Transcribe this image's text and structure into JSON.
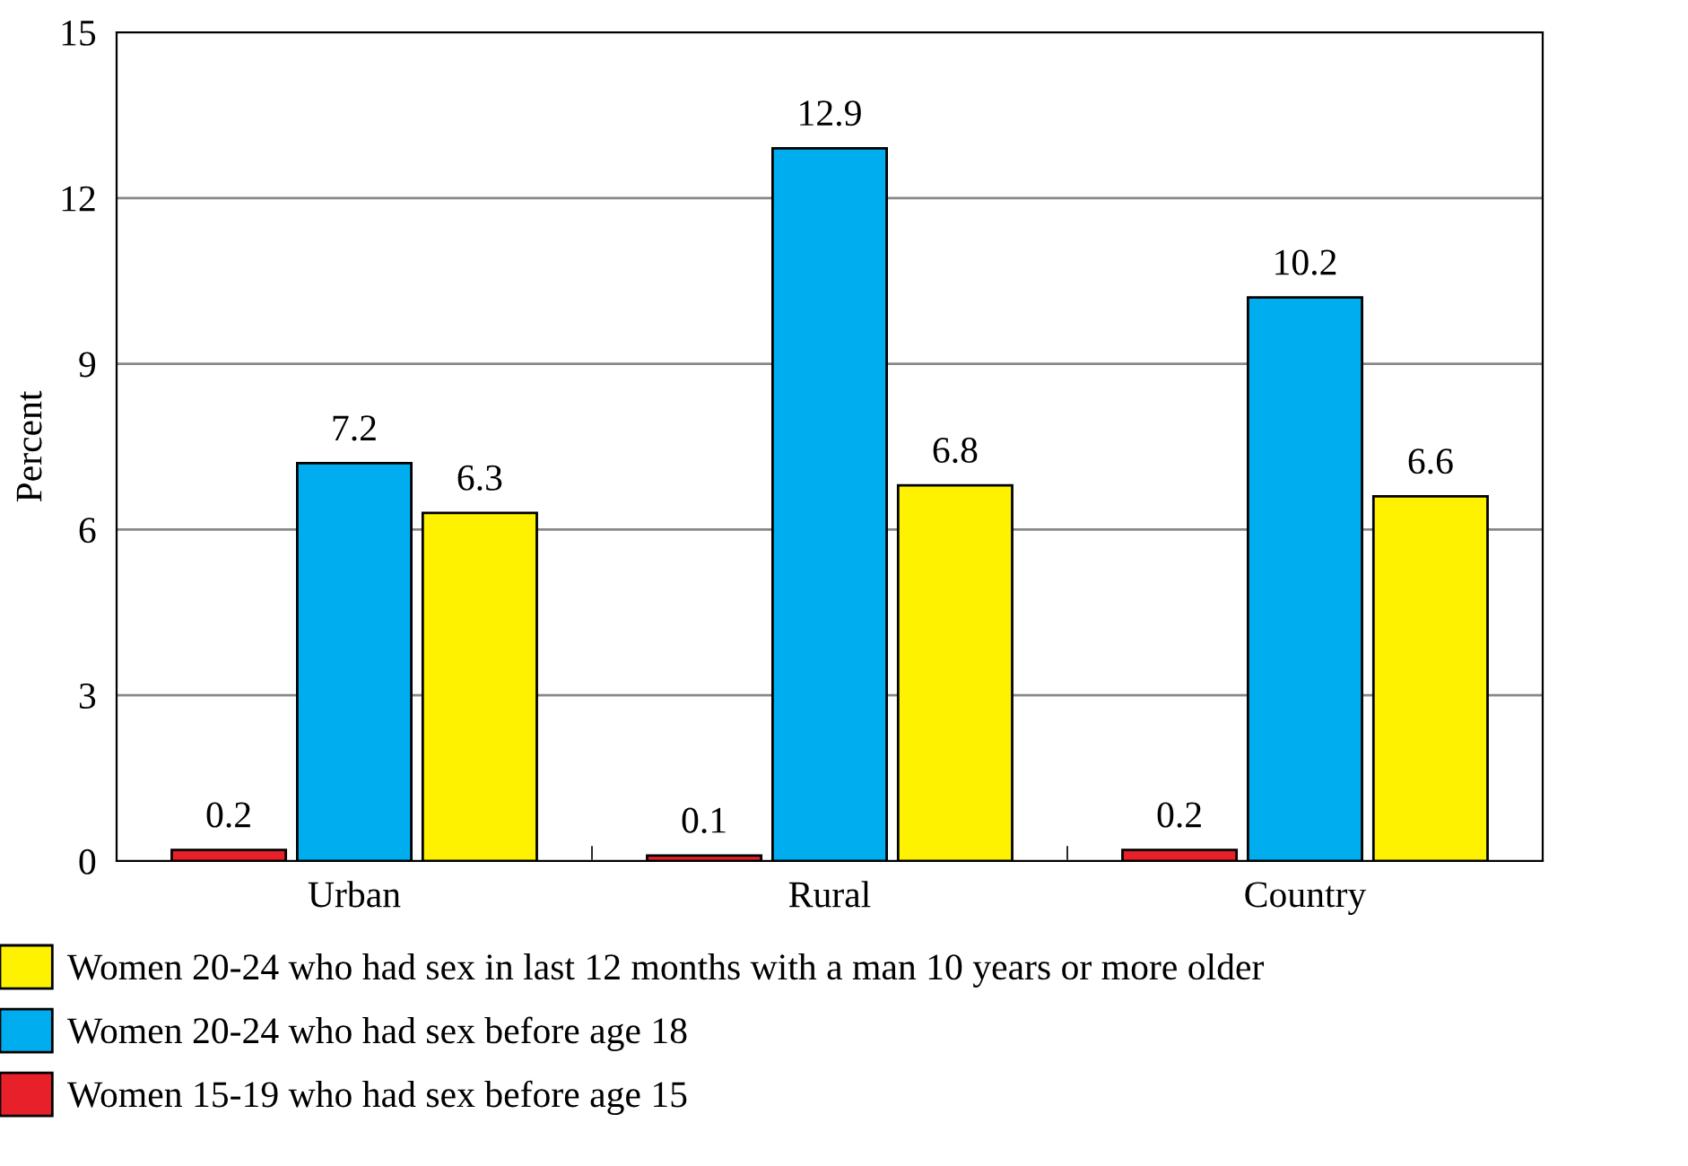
{
  "chart_data": {
    "type": "bar",
    "ylabel": "Percent",
    "categories": [
      "Urban",
      "Rural",
      "Country"
    ],
    "series": [
      {
        "name": "Women 15-19 who had sex before age 15",
        "color": "#e8202a",
        "values": [
          0.2,
          0.1,
          0.2
        ]
      },
      {
        "name": "Women 20-24 who had sex before age 18",
        "color": "#00aeef",
        "values": [
          7.2,
          12.9,
          10.2
        ]
      },
      {
        "name": "Women 20-24 who had sex in last 12 months with a man 10 years or more older",
        "color": "#fff200",
        "values": [
          6.3,
          6.8,
          6.6
        ]
      }
    ],
    "ylim": [
      0,
      15
    ],
    "yticks": [
      0,
      3,
      6,
      9,
      12,
      15
    ],
    "grid": "y",
    "legend": "bottom",
    "data_labels": true
  }
}
